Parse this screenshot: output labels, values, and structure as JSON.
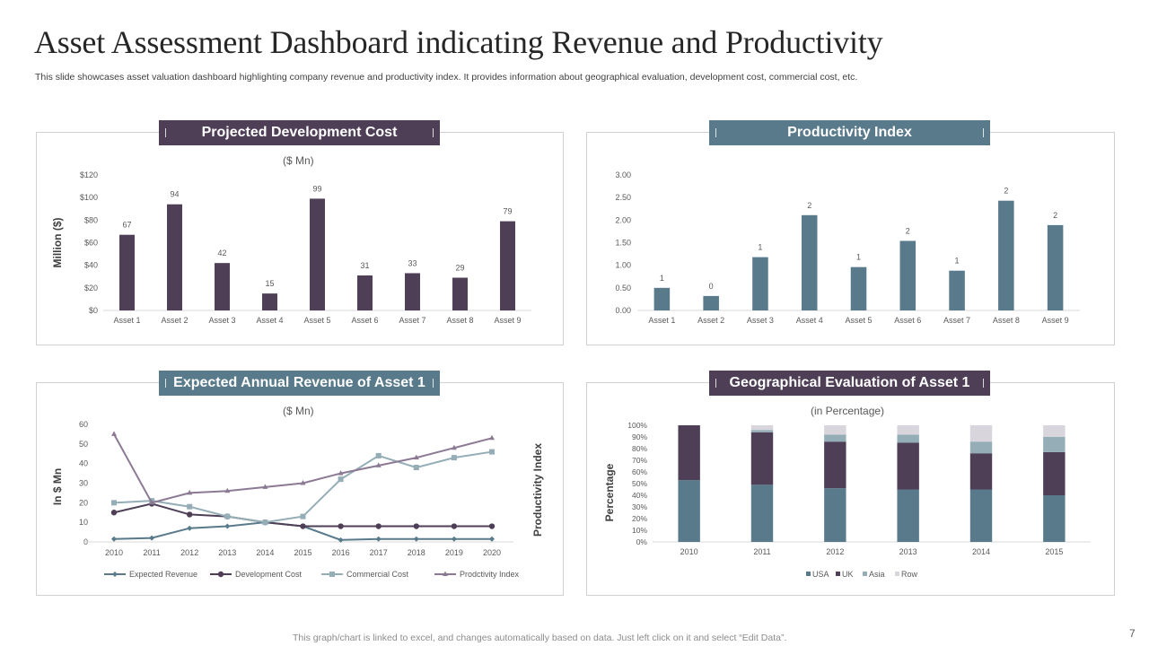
{
  "header": {
    "title": "Asset Assessment Dashboard indicating Revenue and Productivity",
    "subtitle": "This slide showcases asset valuation dashboard highlighting company revenue and productivity index. It provides information about geographical evaluation, development cost, commercial cost, etc."
  },
  "footer": {
    "note": "This graph/chart is linked to excel,  and changes automatically based on data. Just left click on it and select “Edit Data”.",
    "page_number": "7"
  },
  "colors": {
    "purple": "#4e3f56",
    "teal": "#587a8a",
    "light_teal": "#94adb6",
    "light_gray": "#d9d5dd",
    "mauve": "#8c7a94",
    "axis": "#d9d9d9",
    "tick_text": "#595959"
  },
  "panels": {
    "dev_cost": {
      "title": "Projected Development Cost",
      "unit": "($ Mn)"
    },
    "productivity": {
      "title": "Productivity Index"
    },
    "revenue": {
      "title": "Expected Annual Revenue of Asset 1",
      "unit": "($ Mn)"
    },
    "geo": {
      "title": "Geographical Evaluation of Asset 1",
      "unit": "(in Percentage)"
    }
  },
  "chart_data": [
    {
      "id": "dev_cost",
      "type": "bar",
      "title": "Projected Development Cost",
      "subtitle": "($ Mn)",
      "ylabel": "Million ($)",
      "xlabel": "",
      "categories": [
        "Asset 1",
        "Asset 2",
        "Asset 3",
        "Asset 4",
        "Asset 5",
        "Asset 6",
        "Asset 7",
        "Asset 8",
        "Asset 9"
      ],
      "values": [
        67,
        94,
        42,
        15,
        99,
        31,
        33,
        29,
        79
      ],
      "data_labels": [
        "67",
        "94",
        "42",
        "15",
        "99",
        "31",
        "33",
        "29",
        "79"
      ],
      "ylim": [
        0,
        120
      ],
      "yticks": [
        0,
        20,
        40,
        60,
        80,
        100,
        120
      ],
      "ytick_labels": [
        "$0",
        "$20",
        "$40",
        "$60",
        "$80",
        "$100",
        "$120"
      ],
      "color": "#4e3f56",
      "grid": false
    },
    {
      "id": "productivity",
      "type": "bar",
      "title": "Productivity Index",
      "ylabel": "",
      "xlabel": "",
      "categories": [
        "Asset 1",
        "Asset 2",
        "Asset 3",
        "Asset 4",
        "Asset 5",
        "Asset 6",
        "Asset 7",
        "Asset 8",
        "Asset 9"
      ],
      "values": [
        0.5,
        0.32,
        1.18,
        2.11,
        0.96,
        1.54,
        0.88,
        2.43,
        1.89
      ],
      "data_labels": [
        "1",
        "0",
        "1",
        "2",
        "1",
        "2",
        "1",
        "2",
        "2"
      ],
      "ylim": [
        0,
        3
      ],
      "yticks": [
        0,
        0.5,
        1,
        1.5,
        2,
        2.5,
        3
      ],
      "ytick_labels": [
        "0.00",
        "0.50",
        "1.00",
        "1.50",
        "2.00",
        "2.50",
        "3.00"
      ],
      "color": "#587a8a",
      "grid": false
    },
    {
      "id": "revenue",
      "type": "line",
      "title": "Expected Annual Revenue of Asset 1",
      "subtitle": "($ Mn)",
      "ylabel": "In $ Mn",
      "secondary_ylabel": "Productivity Index",
      "x": [
        "2010",
        "2011",
        "2012",
        "2013",
        "2014",
        "2015",
        "2016",
        "2017",
        "2018",
        "2019",
        "2020"
      ],
      "ylim": [
        0,
        60
      ],
      "yticks": [
        0,
        10,
        20,
        30,
        40,
        50,
        60
      ],
      "ytick_labels": [
        "0",
        "10",
        "20",
        "30",
        "40",
        "50",
        "60"
      ],
      "legend_position": "bottom",
      "grid": false,
      "series": [
        {
          "name": "Expected Revenue",
          "marker": "diamond",
          "color": "#587a8a",
          "values": [
            1.5,
            2,
            7,
            8,
            10,
            8,
            1,
            1.5,
            1.5,
            1.5,
            1.5
          ]
        },
        {
          "name": "Development Cost",
          "marker": "circle",
          "color": "#4e3f56",
          "values": [
            15,
            19.5,
            14,
            13,
            10,
            8,
            8,
            8,
            8,
            8,
            8
          ]
        },
        {
          "name": "Commercial Cost",
          "marker": "square",
          "color": "#94adb6",
          "values": [
            20,
            21,
            18,
            13,
            10,
            13,
            32,
            44,
            38,
            43,
            46
          ]
        },
        {
          "name": "Prodctivity Index",
          "marker": "triangle",
          "color": "#8c7a94",
          "values": [
            55,
            20,
            25,
            26,
            28,
            30,
            35,
            39,
            43,
            48,
            53
          ]
        }
      ]
    },
    {
      "id": "geo",
      "type": "bar",
      "stacked": true,
      "title": "Geographical Evaluation of Asset 1",
      "subtitle": "(in Percentage)",
      "ylabel": "Percentage",
      "categories": [
        "2010",
        "2011",
        "2012",
        "2013",
        "2014",
        "2015"
      ],
      "ylim": [
        0,
        100
      ],
      "yticks": [
        0,
        10,
        20,
        30,
        40,
        50,
        60,
        70,
        80,
        90,
        100
      ],
      "ytick_labels": [
        "0%",
        "10%",
        "20%",
        "30%",
        "40%",
        "50%",
        "60%",
        "70%",
        "80%",
        "90%",
        "100%"
      ],
      "legend_position": "bottom",
      "grid": false,
      "series": [
        {
          "name": "USA",
          "color": "#587a8a",
          "values": [
            53,
            49,
            46,
            45,
            45,
            40
          ]
        },
        {
          "name": "UK",
          "color": "#4e3f56",
          "values": [
            47,
            45,
            40,
            40,
            31,
            37
          ]
        },
        {
          "name": "Asia",
          "color": "#94adb6",
          "values": [
            0,
            2,
            6,
            7,
            10,
            13
          ]
        },
        {
          "name": "Row",
          "color": "#d9d5dd",
          "values": [
            0,
            4,
            8,
            8,
            14,
            10
          ]
        }
      ]
    }
  ]
}
